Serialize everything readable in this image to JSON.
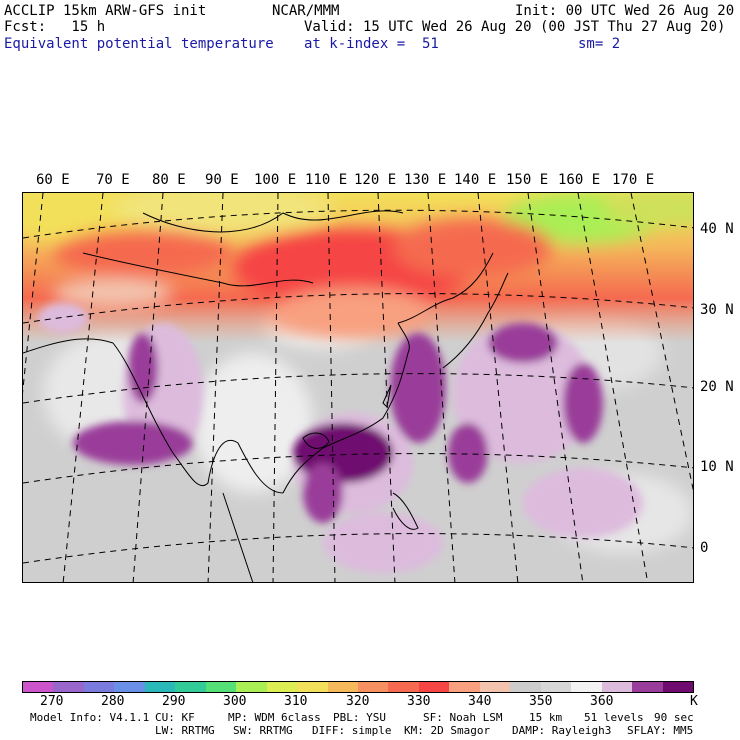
{
  "header": {
    "model": "ACCLIP 15km ARW-GFS init",
    "fcst": "Fcst:   15 h",
    "field": "Equivalent potential temperature",
    "center": "NCAR/MMM",
    "valid": "Valid: 15 UTC Wed 26 Aug 20 (00 JST Thu 27 Aug 20)",
    "level": "at k-index =  51",
    "init": "Init: 00 UTC Wed 26 Aug 20",
    "smooth": "sm= 2"
  },
  "map": {
    "lon_labels": [
      "60 E",
      "70 E",
      "80 E",
      "90 E",
      "100 E",
      "110 E",
      "120 E",
      "130 E",
      "140 E",
      "150 E",
      "160 E",
      "170 E"
    ],
    "lat_labels": [
      "40 N",
      "30 N",
      "20 N",
      "10 N",
      "0"
    ]
  },
  "colorbar": {
    "colors": [
      "#cc55cc",
      "#9966cc",
      "#7b7bdd",
      "#6a8fe6",
      "#2bb8b8",
      "#33cc99",
      "#55e077",
      "#aaee55",
      "#ddee55",
      "#f3e05a",
      "#f5b85a",
      "#f79060",
      "#f56a50",
      "#f54545",
      "#f8a080",
      "#f3c3ad",
      "#cccccc",
      "#d7d7d7",
      "#f2f2f2",
      "#ddbbdd",
      "#9a3d9a",
      "#6f0a6f"
    ],
    "labels": [
      "270",
      "280",
      "290",
      "300",
      "310",
      "320",
      "330",
      "340",
      "350",
      "360",
      "K"
    ]
  },
  "model_info": {
    "line1": [
      "Model Info: V4.1.1",
      "CU: KF",
      "MP: WDM 6class",
      "PBL: YSU",
      "SF: Noah LSM",
      "15 km",
      "51 levels",
      "90 sec"
    ],
    "line2": [
      "LW: RRTMG",
      "SW: RRTMG",
      "DIFF: simple",
      "KM: 2D Smagor",
      "DAMP: Rayleigh3",
      "SFLAY: MM5"
    ]
  }
}
